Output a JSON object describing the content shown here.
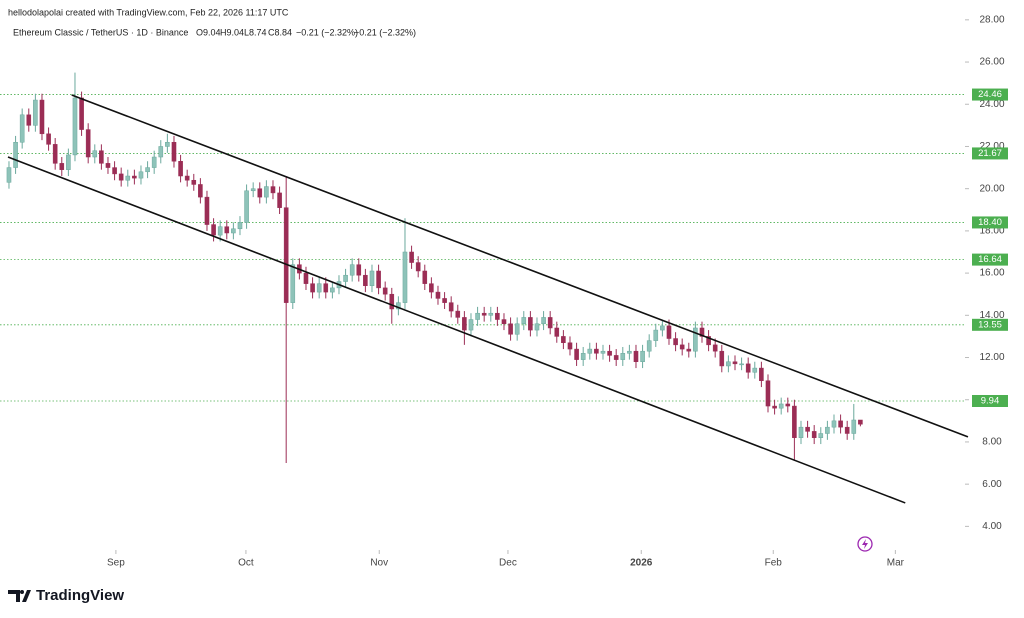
{
  "chart_data": {
    "type": "candlestick",
    "watermark": "hellodolapolai created with TradingView.com, Feb 22, 2026 11:17 UTC",
    "title": "Ethereum Classic / TetherUS · 1D · Binance",
    "legend_values": [
      "O9.04",
      "H9.04",
      "L8.74",
      "C8.84",
      "−0.21 (−2.32%)",
      "−0.21 (−2.32%)"
    ],
    "brand": "TradingView",
    "up_color": "#8ec3b9",
    "down_color": "#9b2d55",
    "level_color": "#4caf50",
    "trend_color": "#111111",
    "xlim": [
      -1.36,
      144.85
    ],
    "ylim": [
      2.88,
      28.94
    ],
    "xticks": [
      {
        "value": 16.2,
        "label": "Sep"
      },
      {
        "value": 35.9,
        "label": "Oct"
      },
      {
        "value": 56.1,
        "label": "Nov"
      },
      {
        "value": 75.6,
        "label": "Dec"
      },
      {
        "value": 95.8,
        "label": "2026"
      },
      {
        "value": 115.8,
        "label": "Feb"
      },
      {
        "value": 134.3,
        "label": "Mar"
      }
    ],
    "yticks": [
      {
        "value": 4,
        "label": "4.00"
      },
      {
        "value": 6,
        "label": "6.00"
      },
      {
        "value": 8,
        "label": "8.00"
      },
      {
        "value": 10,
        "label": "10.00"
      },
      {
        "value": 12,
        "label": "12.00"
      },
      {
        "value": 14,
        "label": "14.00"
      },
      {
        "value": 16,
        "label": "16.00"
      },
      {
        "value": 18,
        "label": "18.00"
      },
      {
        "value": 20,
        "label": "20.00"
      },
      {
        "value": 22,
        "label": "22.00"
      },
      {
        "value": 24,
        "label": "24.00"
      },
      {
        "value": 26,
        "label": "26.00"
      },
      {
        "value": 28,
        "label": "28.00"
      }
    ],
    "levels": [
      {
        "value": 24.46,
        "label": "24.46"
      },
      {
        "value": 21.67,
        "label": "21.67"
      },
      {
        "value": 18.4,
        "label": "18.40"
      },
      {
        "value": 16.64,
        "label": "16.64"
      },
      {
        "value": 13.55,
        "label": "13.55"
      },
      {
        "value": 9.94,
        "label": "9.94"
      }
    ],
    "trendlines": [
      {
        "x": [
          9.5,
          145.3
        ],
        "y": [
          24.44,
          8.24
        ]
      },
      {
        "x": [
          -0.15,
          135.8
        ],
        "y": [
          21.5,
          5.11
        ]
      }
    ],
    "open": [
      20.3,
      21.0,
      22.2,
      23.5,
      23.0,
      24.2,
      22.6,
      22.1,
      21.2,
      20.9,
      21.6,
      24.3,
      22.8,
      21.5,
      21.8,
      21.2,
      21.0,
      20.7,
      20.4,
      20.6,
      20.5,
      20.8,
      21.0,
      21.5,
      22.0,
      22.2,
      21.3,
      20.6,
      20.4,
      20.2,
      19.6,
      18.3,
      17.8,
      18.2,
      17.9,
      18.1,
      18.4,
      19.9,
      20.0,
      19.6,
      20.1,
      19.8,
      19.1,
      14.6,
      16.4,
      16.0,
      15.5,
      15.1,
      15.5,
      15.1,
      15.3,
      15.6,
      15.9,
      16.4,
      15.9,
      15.4,
      16.1,
      15.3,
      15.0,
      14.3,
      14.6,
      17.0,
      16.5,
      16.1,
      15.5,
      15.1,
      14.8,
      14.6,
      14.2,
      13.9,
      13.3,
      13.8,
      14.1,
      14.0,
      14.1,
      13.8,
      13.6,
      13.1,
      13.6,
      13.9,
      13.3,
      13.6,
      13.9,
      13.4,
      13.0,
      12.7,
      12.4,
      11.9,
      12.2,
      12.4,
      12.2,
      12.3,
      12.1,
      11.9,
      12.2,
      12.3,
      11.8,
      12.3,
      12.8,
      13.3,
      13.5,
      12.9,
      12.6,
      12.4,
      12.3,
      13.4,
      13.0,
      12.6,
      12.3,
      11.6,
      11.8,
      11.7,
      11.7,
      11.3,
      11.5,
      10.9,
      9.7,
      9.6,
      9.8,
      9.7,
      8.2,
      8.7,
      8.5,
      8.2,
      8.4,
      8.7,
      9.0,
      8.7,
      8.4,
      9.04
    ],
    "high": [
      21.3,
      22.5,
      23.8,
      23.8,
      24.5,
      24.5,
      22.9,
      22.4,
      21.5,
      21.9,
      25.5,
      24.6,
      23.1,
      22.1,
      22.1,
      21.5,
      21.3,
      21.0,
      20.9,
      20.9,
      21.1,
      21.3,
      21.8,
      22.3,
      22.6,
      22.5,
      21.6,
      20.9,
      20.7,
      20.5,
      19.9,
      18.6,
      18.5,
      18.5,
      18.4,
      18.7,
      20.2,
      20.3,
      20.3,
      20.4,
      20.4,
      20.1,
      20.6,
      16.7,
      16.7,
      16.3,
      15.8,
      15.8,
      15.8,
      15.6,
      15.9,
      16.2,
      16.7,
      16.7,
      16.2,
      16.4,
      16.4,
      15.6,
      15.3,
      14.9,
      18.6,
      17.3,
      16.8,
      16.4,
      15.8,
      15.4,
      15.1,
      14.9,
      14.5,
      14.2,
      14.1,
      14.4,
      14.4,
      14.4,
      14.4,
      14.1,
      13.9,
      13.9,
      14.2,
      14.2,
      13.9,
      14.2,
      14.2,
      13.7,
      13.3,
      13.0,
      12.7,
      12.5,
      12.7,
      12.7,
      12.6,
      12.6,
      12.4,
      12.5,
      12.6,
      12.6,
      12.6,
      13.1,
      13.6,
      13.8,
      13.8,
      13.2,
      12.9,
      12.7,
      13.7,
      13.7,
      13.3,
      12.9,
      12.6,
      12.1,
      12.1,
      12.0,
      12.0,
      11.8,
      11.8,
      11.2,
      10.0,
      10.1,
      10.1,
      10.0,
      9.0,
      9.0,
      8.8,
      8.7,
      9.0,
      9.3,
      9.3,
      9.0,
      9.8,
      9.04
    ],
    "low": [
      20.0,
      20.7,
      21.9,
      22.7,
      22.7,
      22.3,
      21.8,
      20.9,
      20.6,
      20.6,
      21.3,
      22.5,
      21.2,
      21.2,
      20.9,
      20.7,
      20.4,
      20.1,
      20.1,
      20.2,
      20.2,
      20.5,
      20.7,
      21.2,
      21.7,
      21.0,
      20.3,
      20.1,
      19.9,
      19.3,
      18.0,
      17.5,
      17.5,
      17.6,
      17.6,
      17.8,
      18.1,
      19.6,
      19.3,
      19.3,
      19.5,
      18.8,
      7.0,
      14.3,
      15.7,
      15.2,
      14.8,
      14.8,
      14.8,
      14.8,
      15.0,
      15.3,
      15.6,
      15.6,
      15.1,
      15.1,
      15.0,
      14.7,
      13.6,
      14.0,
      14.3,
      16.2,
      15.8,
      15.2,
      14.8,
      14.5,
      14.3,
      13.9,
      13.6,
      12.6,
      13.0,
      13.5,
      13.7,
      13.7,
      13.5,
      13.3,
      12.8,
      12.8,
      13.3,
      13.0,
      13.0,
      13.3,
      13.1,
      12.7,
      12.4,
      12.1,
      11.6,
      11.6,
      11.9,
      11.9,
      11.9,
      11.8,
      11.6,
      11.6,
      11.9,
      11.5,
      11.5,
      12.0,
      12.5,
      13.0,
      12.6,
      12.3,
      12.1,
      12.0,
      12.0,
      12.7,
      12.3,
      12.0,
      11.3,
      11.3,
      11.4,
      11.4,
      11.0,
      11.0,
      10.6,
      9.4,
      9.3,
      9.3,
      9.4,
      7.1,
      7.9,
      8.2,
      7.9,
      7.9,
      8.1,
      8.4,
      8.4,
      8.1,
      8.1,
      8.74
    ],
    "close": [
      21.0,
      22.2,
      23.5,
      23.0,
      24.2,
      22.6,
      22.1,
      21.2,
      20.9,
      21.6,
      24.3,
      22.8,
      21.5,
      21.8,
      21.2,
      21.0,
      20.7,
      20.4,
      20.6,
      20.5,
      20.8,
      21.0,
      21.5,
      22.0,
      22.2,
      21.3,
      20.6,
      20.4,
      20.2,
      19.6,
      18.3,
      17.8,
      18.2,
      17.9,
      18.1,
      18.4,
      19.9,
      20.0,
      19.6,
      20.1,
      19.8,
      19.1,
      14.6,
      16.4,
      16.0,
      15.5,
      15.1,
      15.5,
      15.1,
      15.3,
      15.6,
      15.9,
      16.4,
      15.9,
      15.4,
      16.1,
      15.3,
      15.0,
      14.3,
      14.6,
      17.0,
      16.5,
      16.1,
      15.5,
      15.1,
      14.8,
      14.6,
      14.2,
      13.9,
      13.3,
      13.8,
      14.1,
      14.0,
      14.1,
      13.8,
      13.6,
      13.1,
      13.6,
      13.9,
      13.3,
      13.6,
      13.9,
      13.4,
      13.0,
      12.7,
      12.4,
      11.9,
      12.2,
      12.4,
      12.2,
      12.3,
      12.1,
      11.9,
      12.2,
      12.3,
      11.8,
      12.3,
      12.8,
      13.3,
      13.5,
      12.9,
      12.6,
      12.4,
      12.3,
      13.4,
      13.0,
      12.6,
      12.3,
      11.6,
      11.8,
      11.7,
      11.7,
      11.3,
      11.5,
      10.9,
      9.7,
      9.6,
      9.8,
      9.7,
      8.2,
      8.7,
      8.5,
      8.2,
      8.4,
      8.7,
      9.0,
      8.7,
      8.4,
      9.04,
      8.84
    ]
  }
}
